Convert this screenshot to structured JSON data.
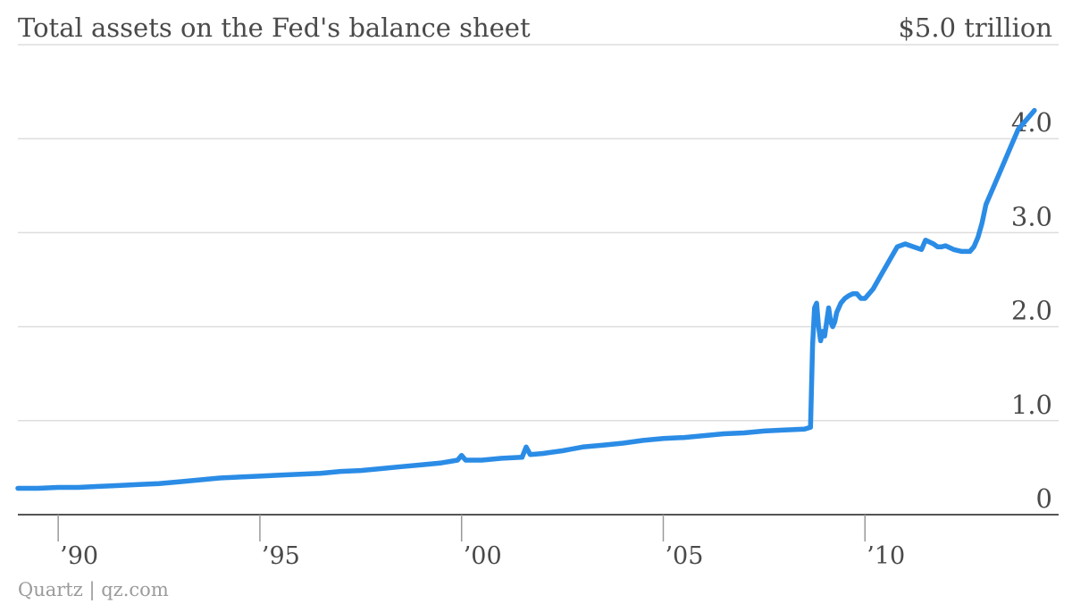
{
  "chart_data": {
    "type": "line",
    "title": "Total assets on the Fed's balance sheet",
    "y_top_label": "$5.0 trillion",
    "source": "Quartz | qz.com",
    "xlim": [
      1989.0,
      2014.8
    ],
    "ylim": [
      0,
      5.0
    ],
    "y_ticks": [
      {
        "value": 0,
        "label": "0"
      },
      {
        "value": 1.0,
        "label": "1.0"
      },
      {
        "value": 2.0,
        "label": "2.0"
      },
      {
        "value": 3.0,
        "label": "3.0"
      },
      {
        "value": 4.0,
        "label": "4.0"
      }
    ],
    "x_ticks": [
      {
        "value": 1990,
        "label": "’90"
      },
      {
        "value": 1995,
        "label": "’95"
      },
      {
        "value": 2000,
        "label": "’00"
      },
      {
        "value": 2005,
        "label": "’05"
      },
      {
        "value": 2010,
        "label": "’10"
      }
    ],
    "grid": true,
    "colors": {
      "line": "#2b8ce6"
    },
    "series": [
      {
        "x": [
          1989.0,
          1989.5,
          1990.0,
          1990.5,
          1991.0,
          1991.5,
          1992.0,
          1992.5,
          1993.0,
          1993.5,
          1994.0,
          1994.5,
          1995.0,
          1995.5,
          1996.0,
          1996.5,
          1997.0,
          1997.5,
          1998.0,
          1998.5,
          1999.0,
          1999.5,
          1999.9,
          2000.0,
          2000.1,
          2000.5,
          2001.0,
          2001.5,
          2001.6,
          2001.7,
          2002.0,
          2002.5,
          2003.0,
          2003.5,
          2004.0,
          2004.5,
          2005.0,
          2005.5,
          2006.0,
          2006.5,
          2007.0,
          2007.5,
          2008.0,
          2008.5,
          2008.65,
          2008.7,
          2008.75,
          2008.8,
          2008.85,
          2008.9,
          2008.95,
          2009.0,
          2009.1,
          2009.15,
          2009.2,
          2009.25,
          2009.3,
          2009.35,
          2009.4,
          2009.5,
          2009.6,
          2009.7,
          2009.8,
          2009.9,
          2010.0,
          2010.2,
          2010.4,
          2010.6,
          2010.8,
          2011.0,
          2011.2,
          2011.4,
          2011.5,
          2011.6,
          2011.7,
          2011.8,
          2011.9,
          2012.0,
          2012.2,
          2012.4,
          2012.6,
          2012.7,
          2012.8,
          2012.9,
          2013.0,
          2013.2,
          2013.4,
          2013.6,
          2013.8,
          2014.0,
          2014.2
        ],
        "values": [
          0.28,
          0.28,
          0.29,
          0.29,
          0.3,
          0.31,
          0.32,
          0.33,
          0.35,
          0.37,
          0.39,
          0.4,
          0.41,
          0.42,
          0.43,
          0.44,
          0.46,
          0.47,
          0.49,
          0.51,
          0.53,
          0.55,
          0.58,
          0.63,
          0.58,
          0.58,
          0.6,
          0.61,
          0.72,
          0.64,
          0.65,
          0.68,
          0.72,
          0.74,
          0.76,
          0.79,
          0.81,
          0.82,
          0.84,
          0.86,
          0.87,
          0.89,
          0.9,
          0.91,
          0.93,
          1.8,
          2.2,
          2.25,
          2.0,
          1.85,
          1.95,
          1.9,
          2.2,
          2.05,
          2.0,
          2.05,
          2.15,
          2.2,
          2.25,
          2.3,
          2.33,
          2.35,
          2.35,
          2.3,
          2.3,
          2.4,
          2.55,
          2.7,
          2.85,
          2.88,
          2.85,
          2.82,
          2.92,
          2.9,
          2.88,
          2.85,
          2.85,
          2.86,
          2.82,
          2.8,
          2.8,
          2.85,
          2.95,
          3.1,
          3.3,
          3.5,
          3.7,
          3.9,
          4.1,
          4.2,
          4.3
        ]
      }
    ]
  }
}
